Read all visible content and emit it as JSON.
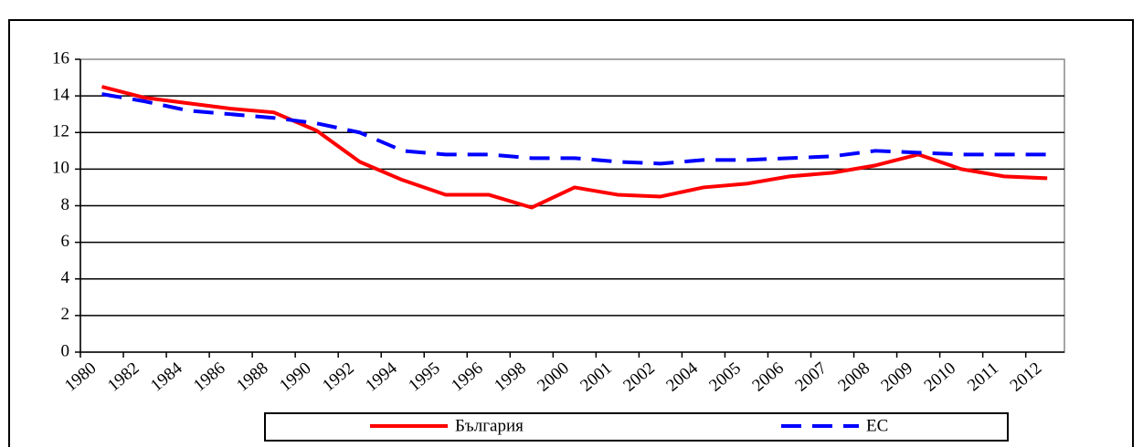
{
  "chart_data": {
    "type": "line",
    "categories": [
      "1980",
      "1982",
      "1984",
      "1986",
      "1988",
      "1990",
      "1992",
      "1994",
      "1995",
      "1996",
      "1998",
      "2000",
      "2001",
      "2002",
      "2004",
      "2005",
      "2006",
      "2007",
      "2008",
      "2009",
      "2010",
      "2011",
      "2012"
    ],
    "series": [
      {
        "name": "България",
        "color": "#ff0000",
        "dash": false,
        "values": [
          14.5,
          13.9,
          13.6,
          13.3,
          13.1,
          12.1,
          10.4,
          9.4,
          8.6,
          8.6,
          7.9,
          9.0,
          8.6,
          8.5,
          9.0,
          9.2,
          9.6,
          9.8,
          10.2,
          10.8,
          10.0,
          9.6,
          9.5
        ]
      },
      {
        "name": "ЕС",
        "color": "#0000ff",
        "dash": true,
        "values": [
          14.1,
          13.7,
          13.2,
          13.0,
          12.8,
          12.5,
          12.0,
          11.0,
          10.8,
          10.8,
          10.6,
          10.6,
          10.4,
          10.3,
          10.5,
          10.5,
          10.6,
          10.7,
          11.0,
          10.9,
          10.8,
          10.8,
          10.8
        ]
      }
    ],
    "ylim": [
      0,
      16
    ],
    "yticks": [
      0,
      2,
      4,
      6,
      8,
      10,
      12,
      14,
      16
    ],
    "grid": true,
    "legend": "bottom"
  }
}
